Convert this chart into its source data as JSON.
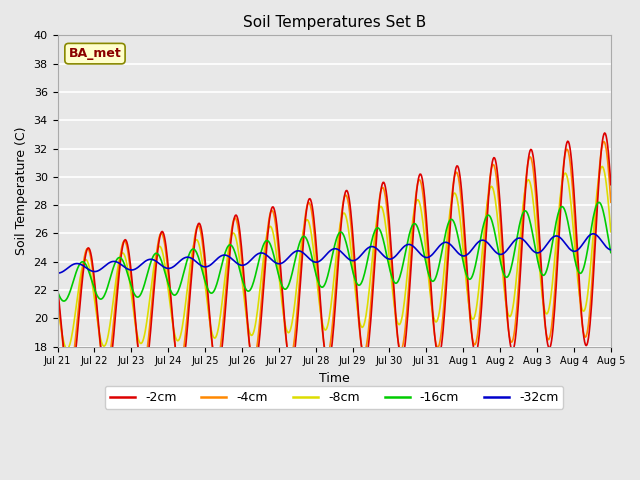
{
  "title": "Soil Temperatures Set B",
  "xlabel": "Time",
  "ylabel": "Soil Temperature (C)",
  "ylim": [
    18,
    40
  ],
  "annotation": "BA_met",
  "bg_color": "#e8e8e8",
  "line_colors": {
    "-2cm": "#dd0000",
    "-4cm": "#ff8800",
    "-8cm": "#dddd00",
    "-16cm": "#00cc00",
    "-32cm": "#0000cc"
  },
  "xtick_labels": [
    "Jul 21",
    "Jul 22",
    "Jul 23",
    "Jul 24",
    "Jul 25",
    "Jul 26",
    "Jul 27",
    "Jul 28",
    "Jul 29",
    "Jul 30",
    "Jul 31",
    "Aug 1",
    "Aug 2",
    "Aug 3",
    "Aug 4",
    "Aug 5"
  ],
  "n_days": 15,
  "points_per_day": 48
}
